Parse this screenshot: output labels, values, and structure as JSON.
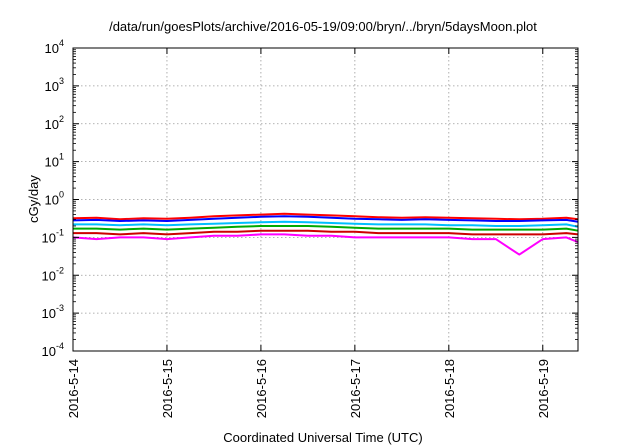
{
  "chart_data": {
    "type": "line",
    "title": "/data/run/goesPlots/archive/2016-05-19/09:00/bryn/../bryn/5daysMoon.plot",
    "xlabel": "Coordinated Universal Time (UTC)",
    "ylabel": "cGy/day",
    "yscale": "log",
    "ylim": [
      0.0001,
      10000
    ],
    "xlim": [
      "2016-05-14",
      "2016-05-19 09:00"
    ],
    "grid": true,
    "y_ticks": [
      {
        "base": "10",
        "exp": "-4"
      },
      {
        "base": "10",
        "exp": "-3"
      },
      {
        "base": "10",
        "exp": "-2"
      },
      {
        "base": "10",
        "exp": "-1"
      },
      {
        "base": "10",
        "exp": "0"
      },
      {
        "base": "10",
        "exp": "1"
      },
      {
        "base": "10",
        "exp": "2"
      },
      {
        "base": "10",
        "exp": "3"
      },
      {
        "base": "10",
        "exp": "4"
      }
    ],
    "x_ticks": [
      "2016-5-14",
      "2016-5-15",
      "2016-5-16",
      "2016-5-17",
      "2016-5-18",
      "2016-5-19"
    ],
    "series": [
      {
        "color": "#ff0000",
        "x": [
          "2016-05-14 00:00",
          "2016-05-14 06:00",
          "2016-05-14 12:00",
          "2016-05-14 18:00",
          "2016-05-15 00:00",
          "2016-05-15 06:00",
          "2016-05-15 12:00",
          "2016-05-15 18:00",
          "2016-05-16 00:00",
          "2016-05-16 06:00",
          "2016-05-16 12:00",
          "2016-05-16 18:00",
          "2016-05-17 00:00",
          "2016-05-17 06:00",
          "2016-05-17 12:00",
          "2016-05-17 18:00",
          "2016-05-18 00:00",
          "2016-05-18 06:00",
          "2016-05-18 12:00",
          "2016-05-18 18:00",
          "2016-05-19 00:00",
          "2016-05-19 06:00",
          "2016-05-19 09:00"
        ],
        "y": [
          0.32,
          0.33,
          0.3,
          0.32,
          0.31,
          0.33,
          0.36,
          0.38,
          0.4,
          0.42,
          0.4,
          0.38,
          0.36,
          0.34,
          0.33,
          0.34,
          0.33,
          0.32,
          0.31,
          0.3,
          0.31,
          0.33,
          0.3
        ]
      },
      {
        "color": "#0000ff",
        "x": [
          "2016-05-14 00:00",
          "2016-05-14 06:00",
          "2016-05-14 12:00",
          "2016-05-14 18:00",
          "2016-05-15 00:00",
          "2016-05-15 06:00",
          "2016-05-15 12:00",
          "2016-05-15 18:00",
          "2016-05-16 00:00",
          "2016-05-16 06:00",
          "2016-05-16 12:00",
          "2016-05-16 18:00",
          "2016-05-17 00:00",
          "2016-05-17 06:00",
          "2016-05-17 12:00",
          "2016-05-17 18:00",
          "2016-05-18 00:00",
          "2016-05-18 06:00",
          "2016-05-18 12:00",
          "2016-05-18 18:00",
          "2016-05-19 00:00",
          "2016-05-19 06:00",
          "2016-05-19 09:00"
        ],
        "y": [
          0.28,
          0.29,
          0.27,
          0.28,
          0.27,
          0.29,
          0.31,
          0.33,
          0.35,
          0.36,
          0.35,
          0.33,
          0.31,
          0.3,
          0.29,
          0.3,
          0.29,
          0.28,
          0.27,
          0.27,
          0.28,
          0.29,
          0.26
        ]
      },
      {
        "color": "#00bfff",
        "x": [
          "2016-05-14 00:00",
          "2016-05-14 06:00",
          "2016-05-14 12:00",
          "2016-05-14 18:00",
          "2016-05-15 00:00",
          "2016-05-15 06:00",
          "2016-05-15 12:00",
          "2016-05-15 18:00",
          "2016-05-16 00:00",
          "2016-05-16 06:00",
          "2016-05-16 12:00",
          "2016-05-16 18:00",
          "2016-05-17 00:00",
          "2016-05-17 06:00",
          "2016-05-17 12:00",
          "2016-05-17 18:00",
          "2016-05-18 00:00",
          "2016-05-18 06:00",
          "2016-05-18 12:00",
          "2016-05-18 18:00",
          "2016-05-19 00:00",
          "2016-05-19 06:00",
          "2016-05-19 09:00"
        ],
        "y": [
          0.22,
          0.22,
          0.21,
          0.22,
          0.21,
          0.22,
          0.23,
          0.24,
          0.25,
          0.26,
          0.25,
          0.24,
          0.23,
          0.22,
          0.22,
          0.22,
          0.21,
          0.21,
          0.2,
          0.2,
          0.21,
          0.22,
          0.19
        ]
      },
      {
        "color": "#00aa00",
        "x": [
          "2016-05-14 00:00",
          "2016-05-14 06:00",
          "2016-05-14 12:00",
          "2016-05-14 18:00",
          "2016-05-15 00:00",
          "2016-05-15 06:00",
          "2016-05-15 12:00",
          "2016-05-15 18:00",
          "2016-05-16 00:00",
          "2016-05-16 06:00",
          "2016-05-16 12:00",
          "2016-05-16 18:00",
          "2016-05-17 00:00",
          "2016-05-17 06:00",
          "2016-05-17 12:00",
          "2016-05-17 18:00",
          "2016-05-18 00:00",
          "2016-05-18 06:00",
          "2016-05-18 12:00",
          "2016-05-18 18:00",
          "2016-05-19 00:00",
          "2016-05-19 06:00",
          "2016-05-19 09:00"
        ],
        "y": [
          0.17,
          0.17,
          0.16,
          0.17,
          0.16,
          0.17,
          0.18,
          0.19,
          0.2,
          0.2,
          0.2,
          0.19,
          0.18,
          0.17,
          0.17,
          0.17,
          0.17,
          0.16,
          0.16,
          0.16,
          0.16,
          0.17,
          0.15
        ]
      },
      {
        "color": "#cc0000",
        "x": [
          "2016-05-14 00:00",
          "2016-05-14 06:00",
          "2016-05-14 12:00",
          "2016-05-14 18:00",
          "2016-05-15 00:00",
          "2016-05-15 06:00",
          "2016-05-15 12:00",
          "2016-05-15 18:00",
          "2016-05-16 00:00",
          "2016-05-16 06:00",
          "2016-05-16 12:00",
          "2016-05-16 18:00",
          "2016-05-17 00:00",
          "2016-05-17 06:00",
          "2016-05-17 12:00",
          "2016-05-17 18:00",
          "2016-05-18 00:00",
          "2016-05-18 06:00",
          "2016-05-18 12:00",
          "2016-05-18 18:00",
          "2016-05-19 00:00",
          "2016-05-19 06:00",
          "2016-05-19 09:00"
        ],
        "y": [
          0.13,
          0.13,
          0.12,
          0.13,
          0.12,
          0.13,
          0.14,
          0.14,
          0.15,
          0.15,
          0.15,
          0.14,
          0.14,
          0.13,
          0.13,
          0.13,
          0.13,
          0.12,
          0.12,
          0.12,
          0.12,
          0.13,
          0.12
        ]
      },
      {
        "color": "#ff00ff",
        "x": [
          "2016-05-14 00:00",
          "2016-05-14 06:00",
          "2016-05-14 12:00",
          "2016-05-14 18:00",
          "2016-05-15 00:00",
          "2016-05-15 06:00",
          "2016-05-15 12:00",
          "2016-05-15 18:00",
          "2016-05-16 00:00",
          "2016-05-16 06:00",
          "2016-05-16 12:00",
          "2016-05-16 18:00",
          "2016-05-17 00:00",
          "2016-05-17 06:00",
          "2016-05-17 12:00",
          "2016-05-17 18:00",
          "2016-05-18 00:00",
          "2016-05-18 06:00",
          "2016-05-18 12:00",
          "2016-05-18 18:00",
          "2016-05-19 00:00",
          "2016-05-19 06:00",
          "2016-05-19 09:00"
        ],
        "y": [
          0.1,
          0.09,
          0.1,
          0.1,
          0.09,
          0.1,
          0.11,
          0.11,
          0.12,
          0.12,
          0.11,
          0.11,
          0.1,
          0.1,
          0.1,
          0.1,
          0.1,
          0.09,
          0.09,
          0.035,
          0.09,
          0.1,
          0.075
        ]
      }
    ]
  }
}
